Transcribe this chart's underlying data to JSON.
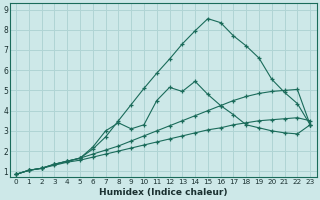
{
  "xlabel": "Humidex (Indice chaleur)",
  "bg_color": "#cde8e8",
  "grid_color": "#b0d4d4",
  "line_color": "#1a6b5a",
  "xlim": [
    -0.5,
    23.5
  ],
  "ylim": [
    0.7,
    9.3
  ],
  "xticks": [
    0,
    1,
    2,
    3,
    4,
    5,
    6,
    7,
    8,
    9,
    10,
    11,
    12,
    13,
    14,
    15,
    16,
    17,
    18,
    19,
    20,
    21,
    22,
    23
  ],
  "yticks": [
    1,
    2,
    3,
    4,
    5,
    6,
    7,
    8,
    9
  ],
  "series": [
    {
      "x": [
        0,
        1,
        2,
        3,
        4,
        5,
        6,
        7,
        8,
        9,
        10,
        11,
        12,
        13,
        14,
        15,
        16,
        17,
        18,
        19,
        20,
        21,
        22,
        23
      ],
      "y": [
        0.85,
        1.05,
        1.15,
        1.3,
        1.45,
        1.55,
        1.7,
        1.85,
        2.0,
        2.15,
        2.3,
        2.45,
        2.6,
        2.75,
        2.9,
        3.05,
        3.15,
        3.3,
        3.4,
        3.5,
        3.55,
        3.6,
        3.65,
        3.5
      ]
    },
    {
      "x": [
        0,
        1,
        2,
        3,
        4,
        5,
        6,
        7,
        8,
        9,
        10,
        11,
        12,
        13,
        14,
        15,
        16,
        17,
        18,
        19,
        20,
        21,
        22,
        23
      ],
      "y": [
        0.85,
        1.05,
        1.15,
        1.35,
        1.5,
        1.65,
        1.85,
        2.05,
        2.25,
        2.5,
        2.75,
        3.0,
        3.25,
        3.5,
        3.75,
        4.0,
        4.25,
        4.5,
        4.7,
        4.85,
        4.95,
        5.0,
        5.05,
        3.3
      ]
    },
    {
      "x": [
        0,
        1,
        2,
        3,
        4,
        5,
        6,
        7,
        8,
        9,
        10,
        11,
        12,
        13,
        14,
        15,
        16,
        17,
        18,
        19,
        20,
        21,
        22,
        23
      ],
      "y": [
        0.85,
        1.05,
        1.15,
        1.35,
        1.5,
        1.65,
        2.2,
        3.0,
        3.4,
        3.1,
        3.3,
        4.5,
        5.15,
        4.95,
        5.45,
        4.8,
        4.25,
        3.8,
        3.3,
        3.15,
        3.0,
        2.9,
        2.85,
        3.3
      ]
    },
    {
      "x": [
        0,
        1,
        2,
        3,
        4,
        5,
        6,
        7,
        8,
        9,
        10,
        11,
        12,
        13,
        14,
        15,
        16,
        17,
        18,
        19,
        20,
        21,
        22,
        23
      ],
      "y": [
        0.85,
        1.05,
        1.15,
        1.35,
        1.5,
        1.65,
        2.1,
        2.7,
        3.5,
        4.3,
        5.1,
        5.85,
        6.55,
        7.3,
        7.95,
        8.55,
        8.35,
        7.7,
        7.2,
        6.6,
        5.55,
        4.9,
        4.35,
        3.3
      ]
    }
  ]
}
